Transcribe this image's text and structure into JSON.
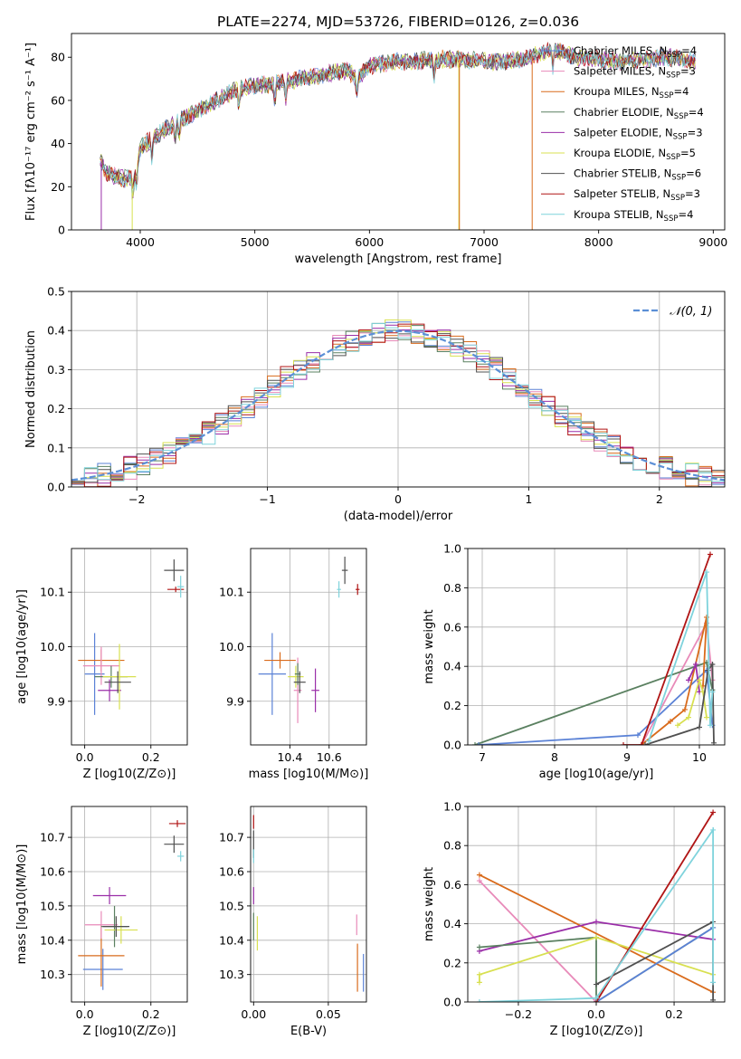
{
  "figure": {
    "title": "PLATE=2274, MJD=53726, FIBERID=0126, z=0.036"
  },
  "chart_data": [
    {
      "id": "spectrum",
      "type": "line",
      "xlabel": "wavelength [Angstrom, rest frame]",
      "ylabel": "Flux [fλ10⁻¹⁷ erg cm⁻² s⁻¹ A⁻¹]",
      "xlim": [
        3400,
        9100
      ],
      "ylim": [
        0,
        91
      ],
      "xticks": [
        4000,
        5000,
        6000,
        7000,
        8000,
        9000
      ],
      "yticks": [
        0,
        20,
        40,
        60,
        80
      ],
      "grid": false,
      "legend_position": "upper-right",
      "continuum_knots": {
        "wavelength": [
          3650,
          3700,
          3800,
          3950,
          4000,
          4200,
          4400,
          4600,
          4800,
          5000,
          5200,
          5400,
          5600,
          5800,
          5900,
          6000,
          6200,
          6400,
          6600,
          6800,
          7000,
          7200,
          7400,
          7600,
          7800,
          8000,
          8200,
          8400,
          8600,
          8850
        ],
        "flux": [
          33,
          27,
          24,
          24,
          38,
          46,
          52,
          58,
          64,
          67,
          68,
          70,
          72,
          74,
          70,
          76,
          78,
          78,
          79,
          79,
          78,
          78,
          80,
          84,
          80,
          79,
          78,
          79,
          80,
          78
        ]
      },
      "dropouts": [
        {
          "name": "Salpeter ELODIE",
          "x": 3660,
          "to": 0
        },
        {
          "name": "Kroupa ELODIE",
          "x": 3930,
          "to": 0
        },
        {
          "name": "Kroupa ELODIE",
          "x": 6780,
          "to": 0
        },
        {
          "name": "Kroupa MILES",
          "x": 6785,
          "to": 0
        },
        {
          "name": "Kroupa MILES",
          "x": 7420,
          "to": 0
        }
      ],
      "series": [
        {
          "name": "Chabrier MILES, N",
          "sub": "SSP",
          "suffix": "=4",
          "color": "#5b82d6"
        },
        {
          "name": "Salpeter MILES, N",
          "sub": "SSP",
          "suffix": "=3",
          "color": "#e88ab9"
        },
        {
          "name": "Kroupa MILES, N",
          "sub": "SSP",
          "suffix": "=4",
          "color": "#d96b1c"
        },
        {
          "name": "Chabrier ELODIE, N",
          "sub": "SSP",
          "suffix": "=4",
          "color": "#5a8060"
        },
        {
          "name": "Salpeter ELODIE, N",
          "sub": "SSP",
          "suffix": "=3",
          "color": "#9a2ea8"
        },
        {
          "name": "Kroupa ELODIE, N",
          "sub": "SSP",
          "suffix": "=5",
          "color": "#d8e050"
        },
        {
          "name": "Chabrier STELIB, N",
          "sub": "SSP",
          "suffix": "=6",
          "color": "#505050"
        },
        {
          "name": "Salpeter STELIB, N",
          "sub": "SSP",
          "suffix": "=3",
          "color": "#b01515"
        },
        {
          "name": "Kroupa STELIB, N",
          "sub": "SSP",
          "suffix": "=4",
          "color": "#7fd3dc"
        }
      ]
    },
    {
      "id": "residuals",
      "type": "step",
      "xlabel": "(data-model)/error",
      "ylabel": "Normed distribution",
      "xlim": [
        -2.5,
        2.5
      ],
      "ylim": [
        0,
        0.5
      ],
      "xticks": [
        -2,
        -1,
        0,
        1,
        2
      ],
      "yticks": [
        0.0,
        0.1,
        0.2,
        0.3,
        0.4,
        0.5
      ],
      "grid": true,
      "bin_width": 0.1,
      "legend": {
        "label": "𝒩(0, 1)",
        "position": "upper-right",
        "style": "dashed",
        "color": "#5b8fd6"
      }
    },
    {
      "id": "age-vs-Z",
      "type": "errorbar",
      "xlabel": "Z [log10(Z/Z⊙)]",
      "ylabel": "age  [log10(age/yr)]",
      "xlim": [
        -0.04,
        0.31
      ],
      "ylim": [
        9.82,
        10.18
      ],
      "xticks": [
        0.0,
        0.2
      ],
      "yticks": [
        9.9,
        10.0,
        10.1
      ],
      "grid": true,
      "points": [
        {
          "x": 0.03,
          "xerr": 0.03,
          "y": 9.95,
          "yerr": 0.075,
          "color": "#5b82d6"
        },
        {
          "x": 0.05,
          "xerr": 0.07,
          "y": 9.975,
          "yerr": 0.02,
          "color": "#d96b1c"
        },
        {
          "x": 0.05,
          "xerr": 0.055,
          "y": 9.965,
          "yerr": 0.035,
          "color": "#e88ab9"
        },
        {
          "x": 0.075,
          "xerr": 0.035,
          "y": 9.92,
          "yerr": 0.02,
          "color": "#9a2ea8"
        },
        {
          "x": 0.08,
          "xerr": 0.05,
          "y": 9.945,
          "yerr": 0.02,
          "color": "#5a8060"
        },
        {
          "x": 0.105,
          "xerr": 0.05,
          "y": 9.945,
          "yerr": 0.06,
          "color": "#d8e050"
        },
        {
          "x": 0.1,
          "xerr": 0.04,
          "y": 9.935,
          "yerr": 0.02,
          "color": "#505050"
        },
        {
          "x": 0.27,
          "xerr": 0.03,
          "y": 10.14,
          "yerr": 0.02,
          "color": "#505050"
        },
        {
          "x": 0.275,
          "xerr": 0.025,
          "y": 10.105,
          "yerr": 0.005,
          "color": "#b01515"
        },
        {
          "x": 0.29,
          "xerr": 0.01,
          "y": 10.11,
          "yerr": 0.02,
          "color": "#7fd3dc"
        }
      ]
    },
    {
      "id": "age-vs-mass",
      "type": "errorbar",
      "xlabel": "mass [log10(M/M⊙)]",
      "ylabel": "",
      "xlim": [
        10.2,
        10.79
      ],
      "ylim": [
        9.82,
        10.18
      ],
      "xticks": [
        10.4,
        10.6
      ],
      "yticks": [
        9.9,
        10.0,
        10.1
      ],
      "grid": true,
      "points": [
        {
          "x": 10.31,
          "xerr": 0.07,
          "y": 9.95,
          "yerr": 0.075,
          "color": "#5b82d6"
        },
        {
          "x": 10.35,
          "xerr": 0.08,
          "y": 9.975,
          "yerr": 0.015,
          "color": "#d96b1c"
        },
        {
          "x": 10.43,
          "xerr": 0.04,
          "y": 9.945,
          "yerr": 0.02,
          "color": "#d8e050"
        },
        {
          "x": 10.44,
          "xerr": 0.02,
          "y": 9.92,
          "yerr": 0.06,
          "color": "#e88ab9"
        },
        {
          "x": 10.44,
          "xerr": 0.015,
          "y": 9.95,
          "yerr": 0.02,
          "color": "#5a8060"
        },
        {
          "x": 10.45,
          "xerr": 0.03,
          "y": 9.935,
          "yerr": 0.02,
          "color": "#505050"
        },
        {
          "x": 10.53,
          "xerr": 0.02,
          "y": 9.92,
          "yerr": 0.04,
          "color": "#9a2ea8"
        },
        {
          "x": 10.68,
          "xerr": 0.015,
          "y": 10.14,
          "yerr": 0.025,
          "color": "#505050"
        },
        {
          "x": 10.65,
          "xerr": 0.01,
          "y": 10.105,
          "yerr": 0.015,
          "color": "#7fd3dc"
        },
        {
          "x": 10.745,
          "xerr": 0.01,
          "y": 10.105,
          "yerr": 0.01,
          "color": "#b01515"
        }
      ]
    },
    {
      "id": "weight-vs-age",
      "type": "line",
      "xlabel": "age  [log10(age/yr)]",
      "ylabel": "mass weight",
      "xlim": [
        6.8,
        10.35
      ],
      "ylim": [
        0,
        1.0
      ],
      "xticks": [
        7,
        8,
        9,
        10
      ],
      "yticks": [
        0.0,
        0.2,
        0.4,
        0.6,
        0.8,
        1.0
      ],
      "grid": true,
      "series": [
        {
          "color": "#e88ab9",
          "x": [
            9.2,
            10.1,
            10.18
          ],
          "y": [
            0.0,
            0.62,
            0.33
          ]
        },
        {
          "color": "#5a8060",
          "x": [
            6.9,
            10.1,
            10.18
          ],
          "y": [
            0.0,
            0.42,
            0.28
          ]
        },
        {
          "color": "#5b82d6",
          "x": [
            6.95,
            9.15,
            10.1,
            10.18
          ],
          "y": [
            0.0,
            0.05,
            0.38,
            0.1
          ]
        },
        {
          "color": "#d96b1c",
          "x": [
            9.2,
            9.6,
            9.8,
            10.1,
            10.05
          ],
          "y": [
            0.0,
            0.12,
            0.18,
            0.65,
            0.3
          ]
        },
        {
          "color": "#9a2ea8",
          "x": [
            9.85,
            9.95,
            10.0
          ],
          "y": [
            0.33,
            0.41,
            0.27
          ]
        },
        {
          "color": "#d8e050",
          "x": [
            9.7,
            9.85,
            10.0,
            10.05,
            10.1
          ],
          "y": [
            0.1,
            0.14,
            0.33,
            0.27,
            0.14
          ]
        },
        {
          "color": "#505050",
          "x": [
            9.25,
            10.0,
            10.12,
            10.18,
            10.2
          ],
          "y": [
            0.0,
            0.09,
            0.38,
            0.41,
            0.01
          ]
        },
        {
          "color": "#b01515",
          "x": [
            8.95,
            9.2,
            10.15
          ],
          "y": [
            0.0,
            0.0,
            0.97
          ]
        },
        {
          "color": "#7fd3dc",
          "x": [
            9.3,
            10.1,
            10.15,
            10.18
          ],
          "y": [
            0.02,
            0.88,
            0.1,
            0.27
          ]
        }
      ]
    },
    {
      "id": "mass-vs-Z",
      "type": "errorbar",
      "xlabel": "Z [log10(Z/Z⊙)]",
      "ylabel": "mass [log10(M/M⊙)]",
      "xlim": [
        -0.04,
        0.31
      ],
      "ylim": [
        10.22,
        10.79
      ],
      "xticks": [
        0.0,
        0.2
      ],
      "yticks": [
        10.3,
        10.4,
        10.5,
        10.6,
        10.7
      ],
      "grid": true,
      "points": [
        {
          "x": 0.055,
          "xerr": 0.06,
          "y": 10.315,
          "yerr": 0.06,
          "color": "#5b82d6"
        },
        {
          "x": 0.05,
          "xerr": 0.07,
          "y": 10.355,
          "yerr": 0.09,
          "color": "#d96b1c"
        },
        {
          "x": 0.05,
          "xerr": 0.05,
          "y": 10.445,
          "yerr": 0.04,
          "color": "#e88ab9"
        },
        {
          "x": 0.075,
          "xerr": 0.05,
          "y": 10.53,
          "yerr": 0.025,
          "color": "#9a2ea8"
        },
        {
          "x": 0.09,
          "xerr": 0.04,
          "y": 10.44,
          "yerr": 0.06,
          "color": "#5a8060"
        },
        {
          "x": 0.11,
          "xerr": 0.05,
          "y": 10.43,
          "yerr": 0.04,
          "color": "#d8e050"
        },
        {
          "x": 0.095,
          "xerr": 0.04,
          "y": 10.44,
          "yerr": 0.03,
          "color": "#505050"
        },
        {
          "x": 0.27,
          "xerr": 0.03,
          "y": 10.68,
          "yerr": 0.025,
          "color": "#505050"
        },
        {
          "x": 0.28,
          "xerr": 0.025,
          "y": 10.74,
          "yerr": 0.01,
          "color": "#b01515"
        },
        {
          "x": 0.29,
          "xerr": 0.01,
          "y": 10.645,
          "yerr": 0.015,
          "color": "#7fd3dc"
        }
      ]
    },
    {
      "id": "mass-vs-EBV",
      "type": "errorbar",
      "xlabel": "E(B-V)",
      "ylabel": "",
      "xlim": [
        -0.002,
        0.0755
      ],
      "ylim": [
        10.22,
        10.79
      ],
      "xticks": [
        0.0,
        0.05
      ],
      "yticks": [
        10.3,
        10.4,
        10.5,
        10.6,
        10.7
      ],
      "grid": true,
      "points": [
        {
          "x": 0.0,
          "xerr": 0.0,
          "y": 10.745,
          "yerr": 0.02,
          "color": "#b01515"
        },
        {
          "x": 0.0,
          "xerr": 0.0,
          "y": 10.68,
          "yerr": 0.04,
          "color": "#505050"
        },
        {
          "x": 0.0,
          "xerr": 0.0,
          "y": 10.645,
          "yerr": 0.02,
          "color": "#7fd3dc"
        },
        {
          "x": 0.0,
          "xerr": 0.0,
          "y": 10.53,
          "yerr": 0.025,
          "color": "#9a2ea8"
        },
        {
          "x": 0.0,
          "xerr": 0.0,
          "y": 10.44,
          "yerr": 0.04,
          "color": "#5a8060"
        },
        {
          "x": 0.0025,
          "xerr": 0.0,
          "y": 10.42,
          "yerr": 0.05,
          "color": "#d8e050"
        },
        {
          "x": 0.069,
          "xerr": 0.0,
          "y": 10.445,
          "yerr": 0.03,
          "color": "#e88ab9"
        },
        {
          "x": 0.0695,
          "xerr": 0.0,
          "y": 10.32,
          "yerr": 0.07,
          "color": "#d96b1c"
        },
        {
          "x": 0.0735,
          "xerr": 0.0,
          "y": 10.305,
          "yerr": 0.055,
          "color": "#5b82d6"
        }
      ]
    },
    {
      "id": "weight-vs-Z",
      "type": "line",
      "xlabel": "Z [log10(Z/Z⊙)]",
      "ylabel": "mass weight",
      "xlim": [
        -0.33,
        0.33
      ],
      "ylim": [
        0,
        1.0
      ],
      "xticks": [
        -0.2,
        0.0,
        0.2
      ],
      "yticks": [
        0.0,
        0.2,
        0.4,
        0.6,
        0.8,
        1.0
      ],
      "grid": true,
      "series": [
        {
          "color": "#e88ab9",
          "x": [
            -0.3,
            0.0
          ],
          "y": [
            0.62,
            0.0
          ]
        },
        {
          "color": "#d96b1c",
          "x": [
            -0.3,
            0.3
          ],
          "y": [
            0.65,
            0.05
          ]
        },
        {
          "color": "#9a2ea8",
          "x": [
            -0.3,
            0.0,
            0.3
          ],
          "y": [
            0.26,
            0.41,
            0.32
          ]
        },
        {
          "color": "#5a8060",
          "x": [
            -0.3,
            0.0,
            0.0,
            0.3
          ],
          "y": [
            0.28,
            0.33,
            0.0,
            0.38
          ]
        },
        {
          "color": "#d8e050",
          "x": [
            -0.3,
            -0.3,
            0.0,
            0.3
          ],
          "y": [
            0.1,
            0.14,
            0.33,
            0.14
          ]
        },
        {
          "color": "#505050",
          "x": [
            0.0,
            0.3,
            0.3
          ],
          "y": [
            0.09,
            0.41,
            0.01
          ]
        },
        {
          "color": "#5b82d6",
          "x": [
            0.0,
            0.3
          ],
          "y": [
            0.0,
            0.38
          ]
        },
        {
          "color": "#b01515",
          "x": [
            0.0,
            0.3
          ],
          "y": [
            0.0,
            0.97
          ]
        },
        {
          "color": "#7fd3dc",
          "x": [
            -0.3,
            0.0,
            0.3,
            0.3
          ],
          "y": [
            0.0,
            0.02,
            0.88,
            0.1
          ]
        }
      ]
    }
  ]
}
